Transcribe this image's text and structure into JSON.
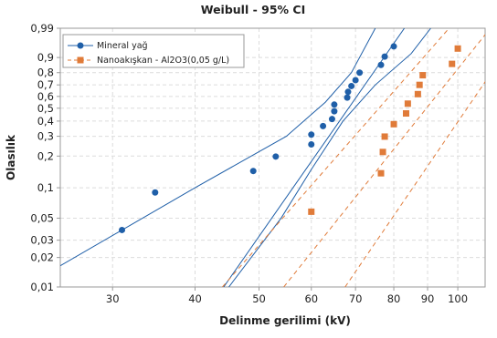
{
  "chart_data": {
    "type": "scatter",
    "title": "Weibull - 95% CI",
    "xlabel": "Delinme gerilimi (kV)",
    "ylabel": "Olasılık",
    "x_scale": "log",
    "y_scale": "weibull-probability",
    "xlim": [
      25,
      110
    ],
    "ylim": [
      0.01,
      0.99
    ],
    "x_ticks": [
      30,
      40,
      50,
      60,
      70,
      80,
      90,
      100
    ],
    "x_tick_labels": [
      "30",
      "40",
      "50",
      "60",
      "70",
      "80",
      "90",
      "100"
    ],
    "y_ticks": [
      0.01,
      0.02,
      0.03,
      0.05,
      0.1,
      0.2,
      0.3,
      0.4,
      0.5,
      0.6,
      0.7,
      0.8,
      0.9,
      0.99
    ],
    "y_tick_labels": [
      "0,01",
      "0,02",
      "0,03",
      "0,05",
      "0,1",
      "0,2",
      "0,3",
      "0,4",
      "0,5",
      "0,6",
      "0,7",
      "0,8",
      "0,9",
      "0,99"
    ],
    "grid": true,
    "legend_position": "top-left",
    "series": [
      {
        "name": "Mineral yağ",
        "color": "#1f5fa8",
        "marker": "circle",
        "line_style": "solid",
        "points": [
          {
            "x": 31.0,
            "y": 0.038
          },
          {
            "x": 34.8,
            "y": 0.09
          },
          {
            "x": 49.0,
            "y": 0.145
          },
          {
            "x": 53.0,
            "y": 0.198
          },
          {
            "x": 60.0,
            "y": 0.255
          },
          {
            "x": 60.0,
            "y": 0.31
          },
          {
            "x": 62.5,
            "y": 0.365
          },
          {
            "x": 64.5,
            "y": 0.415
          },
          {
            "x": 65.0,
            "y": 0.475
          },
          {
            "x": 65.0,
            "y": 0.53
          },
          {
            "x": 68.0,
            "y": 0.59
          },
          {
            "x": 68.2,
            "y": 0.64
          },
          {
            "x": 69.0,
            "y": 0.69
          },
          {
            "x": 70.0,
            "y": 0.74
          },
          {
            "x": 71.0,
            "y": 0.8
          },
          {
            "x": 76.5,
            "y": 0.855
          },
          {
            "x": 77.5,
            "y": 0.905
          },
          {
            "x": 80.0,
            "y": 0.95
          }
        ],
        "fit": [
          {
            "x": 44.2,
            "y": 0.01
          },
          {
            "x": 83.0,
            "y": 0.99
          }
        ],
        "ci_lower": [
          {
            "x": 22.0,
            "y": 0.01
          },
          {
            "x": 40.0,
            "y": 0.1
          },
          {
            "x": 55.0,
            "y": 0.3
          },
          {
            "x": 63.0,
            "y": 0.55
          },
          {
            "x": 69.0,
            "y": 0.8
          },
          {
            "x": 75.0,
            "y": 0.99
          }
        ],
        "ci_upper": [
          {
            "x": 45.0,
            "y": 0.01
          },
          {
            "x": 54.0,
            "y": 0.05
          },
          {
            "x": 60.0,
            "y": 0.15
          },
          {
            "x": 67.0,
            "y": 0.4
          },
          {
            "x": 75.0,
            "y": 0.7
          },
          {
            "x": 85.0,
            "y": 0.92
          },
          {
            "x": 91.0,
            "y": 0.99
          }
        ]
      },
      {
        "name": "Nanoakışkan - Al2O3(0,05 g/L)",
        "color": "#e07b39",
        "marker": "square",
        "line_style": "dashed",
        "points": [
          {
            "x": 60.0,
            "y": 0.058
          },
          {
            "x": 76.5,
            "y": 0.138
          },
          {
            "x": 77.0,
            "y": 0.218
          },
          {
            "x": 77.5,
            "y": 0.298
          },
          {
            "x": 80.0,
            "y": 0.378
          },
          {
            "x": 83.5,
            "y": 0.458
          },
          {
            "x": 84.0,
            "y": 0.538
          },
          {
            "x": 87.0,
            "y": 0.62
          },
          {
            "x": 87.5,
            "y": 0.7
          },
          {
            "x": 88.5,
            "y": 0.78
          },
          {
            "x": 98.0,
            "y": 0.862
          },
          {
            "x": 100.0,
            "y": 0.942
          }
        ],
        "fit": [
          {
            "x": 54.5,
            "y": 0.01
          },
          {
            "x": 112.0,
            "y": 0.99
          }
        ],
        "ci_lower": [
          {
            "x": 44.0,
            "y": 0.01
          },
          {
            "x": 97.0,
            "y": 0.99
          }
        ],
        "ci_upper": [
          {
            "x": 67.5,
            "y": 0.01
          },
          {
            "x": 125.0,
            "y": 0.99
          }
        ]
      }
    ]
  }
}
